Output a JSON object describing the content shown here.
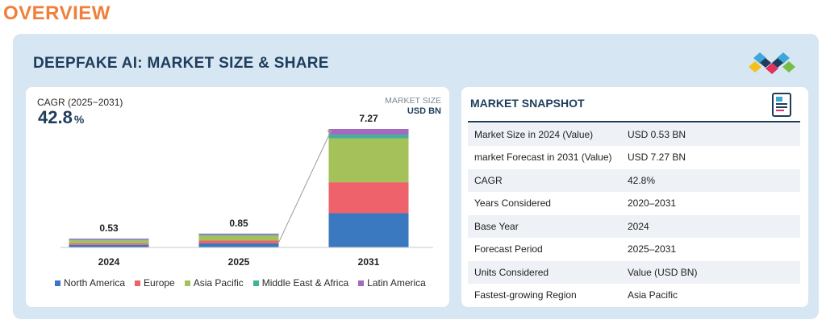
{
  "page_title": "OVERVIEW",
  "panel_title": "DEEPFAKE AI: MARKET SIZE & SHARE",
  "chart_data": {
    "type": "bar",
    "stacked": true,
    "categories": [
      "2024",
      "2025",
      "2031"
    ],
    "totals": [
      0.53,
      0.85,
      7.27
    ],
    "total_labels": [
      "0.53",
      "0.85",
      "7.27"
    ],
    "series": [
      {
        "name": "North America",
        "color": "#3a78c0",
        "values": [
          0.16,
          0.25,
          2.1
        ]
      },
      {
        "name": "Europe",
        "color": "#ee636b",
        "values": [
          0.1,
          0.17,
          1.9
        ]
      },
      {
        "name": "Asia Pacific",
        "color": "#a4c15a",
        "values": [
          0.17,
          0.3,
          2.7
        ]
      },
      {
        "name": "Middle East & Africa",
        "color": "#3fb39a",
        "values": [
          0.04,
          0.06,
          0.22
        ]
      },
      {
        "name": "Latin America",
        "color": "#a36abf",
        "values": [
          0.06,
          0.07,
          0.35
        ]
      }
    ],
    "ylim": [
      0,
      7.27
    ],
    "cagr_label": "CAGR (2025−2031)",
    "cagr_value": "42.8",
    "cagr_unit": "%",
    "unit_label": "MARKET SIZE",
    "unit_value": "USD BN"
  },
  "snapshot": {
    "title": "MARKET SNAPSHOT",
    "rows": [
      {
        "key": "Market Size in 2024 (Value)",
        "value": "USD 0.53 BN"
      },
      {
        "key": "market Forecast in 2031 (Value)",
        "value": "USD 7.27 BN"
      },
      {
        "key": "CAGR",
        "value": "42.8%"
      },
      {
        "key": "Years Considered",
        "value": "2020–2031"
      },
      {
        "key": "Base Year",
        "value": "2024"
      },
      {
        "key": "Forecast Period",
        "value": "2025–2031"
      },
      {
        "key": "Units Considered",
        "value": "Value (USD BN)"
      },
      {
        "key": "Fastest-growing Region",
        "value": "Asia Pacific"
      }
    ]
  },
  "icons": {
    "logo": "diamond-logo-icon",
    "snapshot": "document-chart-icon"
  }
}
